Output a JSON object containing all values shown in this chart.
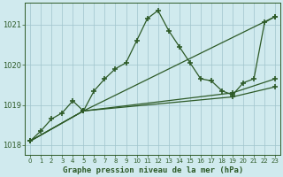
{
  "title": "Graphe pression niveau de la mer (hPa)",
  "bg_color": "#d0eaee",
  "grid_color": "#a0c4cc",
  "line_color": "#2d5a27",
  "xlim": [
    -0.5,
    23.5
  ],
  "ylim": [
    1017.75,
    1021.55
  ],
  "yticks": [
    1018,
    1019,
    1020,
    1021
  ],
  "xticks": [
    0,
    1,
    2,
    3,
    4,
    5,
    6,
    7,
    8,
    9,
    10,
    11,
    12,
    13,
    14,
    15,
    16,
    17,
    18,
    19,
    20,
    21,
    22,
    23
  ],
  "series": [
    {
      "x": [
        0,
        1,
        2,
        3,
        4,
        5,
        6,
        7,
        8,
        9,
        10,
        11,
        12,
        13,
        14,
        15,
        16,
        17,
        18,
        19,
        20,
        21,
        22,
        23
      ],
      "y": [
        1018.1,
        1018.35,
        1018.65,
        1018.8,
        1019.1,
        1018.85,
        1019.35,
        1019.65,
        1019.9,
        1020.05,
        1020.6,
        1021.15,
        1021.35,
        1020.85,
        1020.45,
        1020.05,
        1019.65,
        1019.6,
        1019.35,
        1019.25,
        1019.55,
        1019.65,
        1021.05,
        1021.2
      ]
    },
    {
      "x": [
        0,
        5,
        23
      ],
      "y": [
        1018.1,
        1018.85,
        1021.2
      ]
    },
    {
      "x": [
        0,
        5,
        19,
        23
      ],
      "y": [
        1018.1,
        1018.85,
        1019.3,
        1019.65
      ]
    },
    {
      "x": [
        0,
        5,
        19,
        23
      ],
      "y": [
        1018.1,
        1018.85,
        1019.2,
        1019.45
      ]
    }
  ]
}
